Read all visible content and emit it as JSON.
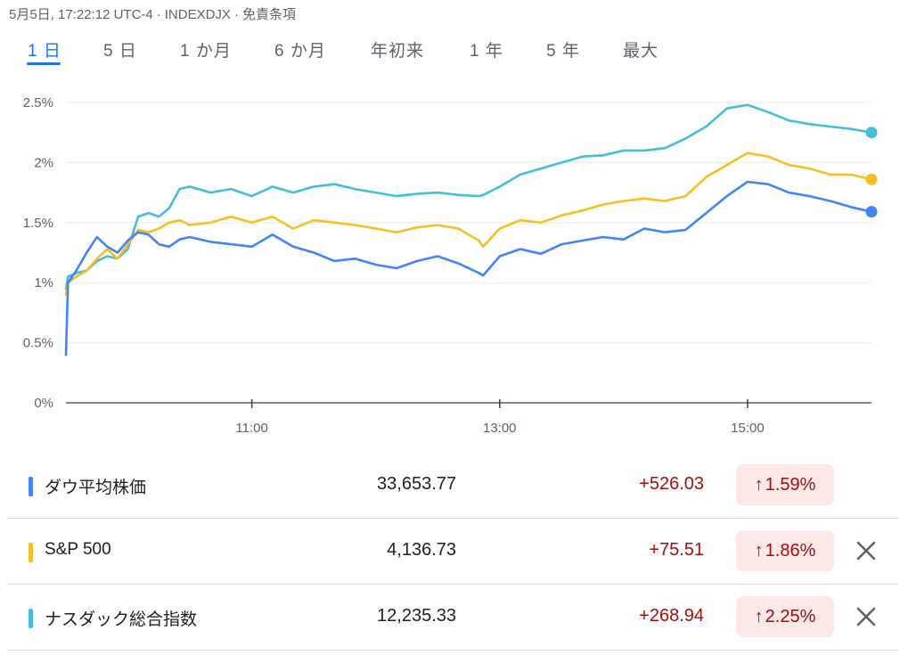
{
  "header": {
    "datetime": "5月5日, 17:22:12 UTC-4",
    "separator": "·",
    "index": "INDEXDJX",
    "disclaimer": "免責条項"
  },
  "tabs": [
    {
      "label": "1 日",
      "active": true
    },
    {
      "label": "5 日"
    },
    {
      "label": "1 か月"
    },
    {
      "label": "6 か月"
    },
    {
      "label": "年初来"
    },
    {
      "label": "1 年"
    },
    {
      "label": "5 年"
    },
    {
      "label": "最大"
    }
  ],
  "colors": {
    "dow": "#4285f4",
    "sp500": "#f6bf26",
    "nasdaq": "#46bdd9",
    "accent": "#1a73e8",
    "up_text": "#a50e0e",
    "up_badge": "#fce8e6"
  },
  "chart_data": {
    "type": "line",
    "x_range": [
      "09:30",
      "16:00"
    ],
    "x_ticks": [
      "11:00",
      "13:00",
      "15:00"
    ],
    "y_ticks": [
      "0%",
      "0.5%",
      "1%",
      "1.5%",
      "2%",
      "2.5%"
    ],
    "ylim": [
      0,
      2.5
    ],
    "grid": true,
    "x": [
      "09:30",
      "09:31",
      "09:35",
      "09:40",
      "09:45",
      "09:50",
      "09:55",
      "10:00",
      "10:05",
      "10:10",
      "10:15",
      "10:20",
      "10:25",
      "10:30",
      "10:40",
      "10:50",
      "11:00",
      "11:10",
      "11:20",
      "11:30",
      "11:40",
      "11:50",
      "12:00",
      "12:10",
      "12:20",
      "12:30",
      "12:40",
      "12:50",
      "12:52",
      "13:00",
      "13:10",
      "13:20",
      "13:30",
      "13:40",
      "13:50",
      "14:00",
      "14:10",
      "14:20",
      "14:30",
      "14:40",
      "14:50",
      "15:00",
      "15:10",
      "15:20",
      "15:30",
      "15:40",
      "15:50",
      "16:00"
    ],
    "series": [
      {
        "name": "ダウ平均株価",
        "color": "#4285f4",
        "values": [
          0.4,
          1.0,
          1.1,
          1.25,
          1.38,
          1.3,
          1.25,
          1.35,
          1.42,
          1.4,
          1.32,
          1.3,
          1.36,
          1.38,
          1.34,
          1.32,
          1.3,
          1.4,
          1.3,
          1.25,
          1.18,
          1.2,
          1.15,
          1.12,
          1.18,
          1.22,
          1.16,
          1.08,
          1.06,
          1.22,
          1.28,
          1.24,
          1.32,
          1.35,
          1.38,
          1.36,
          1.45,
          1.42,
          1.44,
          1.58,
          1.72,
          1.84,
          1.82,
          1.75,
          1.72,
          1.68,
          1.63,
          1.59
        ]
      },
      {
        "name": "S&P 500",
        "color": "#f6bf26",
        "values": [
          0.9,
          1.0,
          1.05,
          1.1,
          1.2,
          1.28,
          1.2,
          1.32,
          1.44,
          1.42,
          1.45,
          1.5,
          1.52,
          1.48,
          1.5,
          1.55,
          1.5,
          1.55,
          1.45,
          1.52,
          1.5,
          1.48,
          1.45,
          1.42,
          1.46,
          1.48,
          1.45,
          1.35,
          1.3,
          1.45,
          1.52,
          1.5,
          1.56,
          1.6,
          1.65,
          1.68,
          1.7,
          1.68,
          1.72,
          1.88,
          1.98,
          2.08,
          2.05,
          1.98,
          1.95,
          1.9,
          1.9,
          1.86
        ]
      },
      {
        "name": "ナスダック総合指数",
        "color": "#46bdd9",
        "values": [
          0.95,
          1.05,
          1.08,
          1.1,
          1.18,
          1.22,
          1.2,
          1.28,
          1.55,
          1.58,
          1.55,
          1.62,
          1.78,
          1.8,
          1.75,
          1.78,
          1.72,
          1.8,
          1.75,
          1.8,
          1.82,
          1.78,
          1.75,
          1.72,
          1.74,
          1.75,
          1.73,
          1.72,
          1.73,
          1.8,
          1.9,
          1.95,
          2.0,
          2.05,
          2.06,
          2.1,
          2.1,
          2.12,
          2.2,
          2.3,
          2.45,
          2.48,
          2.42,
          2.35,
          2.32,
          2.3,
          2.28,
          2.25
        ]
      }
    ]
  },
  "indices": [
    {
      "name": "ダウ平均株価",
      "price": "33,653.77",
      "change": "+526.03",
      "percent": "1.59%",
      "arrow": "↑",
      "removable": false
    },
    {
      "name": "S&P 500",
      "price": "4,136.73",
      "change": "+75.51",
      "percent": "1.86%",
      "arrow": "↑",
      "removable": true
    },
    {
      "name": "ナスダック総合指数",
      "price": "12,235.33",
      "change": "+268.94",
      "percent": "2.25%",
      "arrow": "↑",
      "removable": true
    }
  ]
}
